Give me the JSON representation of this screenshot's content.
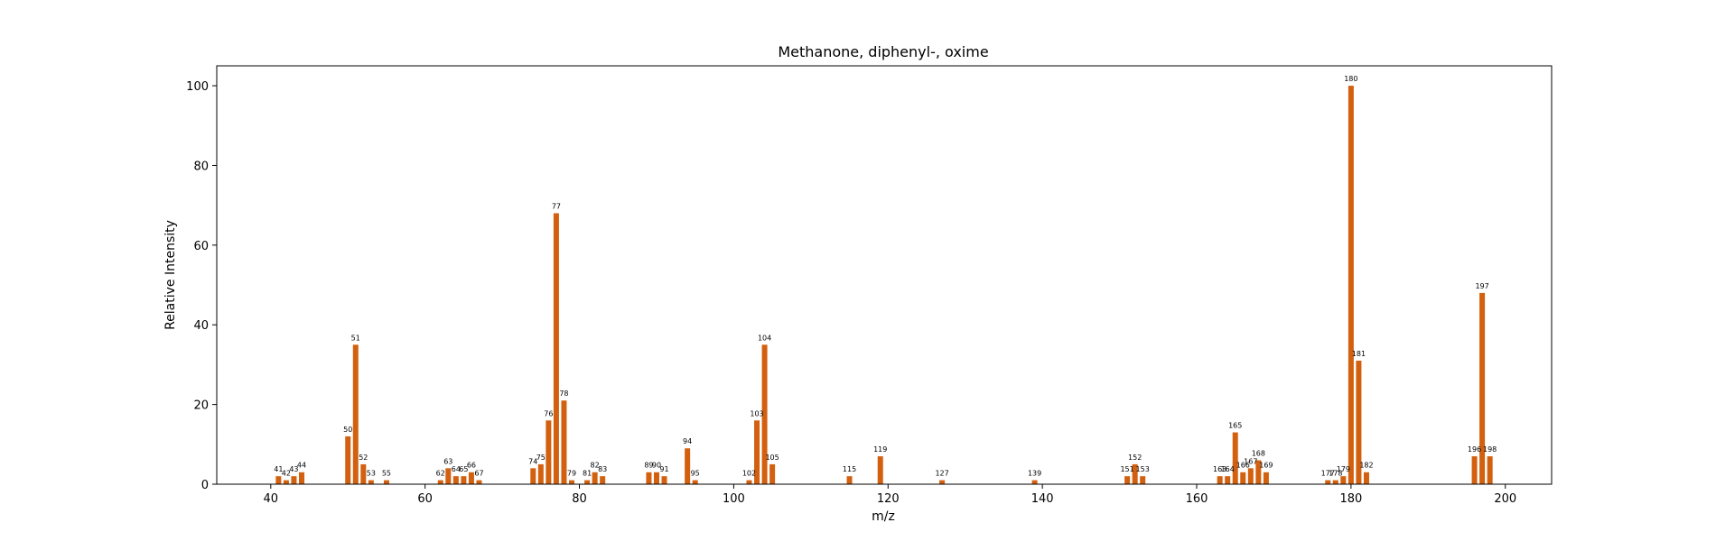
{
  "chart_data": {
    "type": "bar",
    "title": "Methanone, diphenyl-, oxime",
    "xlabel": "m/z",
    "ylabel": "Relative Intensity",
    "xlim": [
      33,
      206
    ],
    "ylim": [
      0,
      105
    ],
    "xticks": [
      40,
      60,
      80,
      100,
      120,
      140,
      160,
      180,
      200
    ],
    "yticks": [
      0,
      20,
      40,
      60,
      80,
      100
    ],
    "bar_color": "#d2600f",
    "grid": false,
    "x": [
      41,
      42,
      43,
      44,
      50,
      51,
      52,
      53,
      55,
      62,
      63,
      64,
      65,
      66,
      67,
      74,
      75,
      76,
      77,
      78,
      79,
      81,
      82,
      83,
      89,
      90,
      91,
      94,
      95,
      102,
      103,
      104,
      105,
      115,
      119,
      127,
      139,
      151,
      152,
      153,
      163,
      164,
      165,
      166,
      167,
      168,
      169,
      177,
      178,
      179,
      180,
      181,
      182,
      196,
      197,
      198
    ],
    "values": [
      2,
      1,
      2,
      3,
      12,
      35,
      5,
      1,
      1,
      1,
      4,
      2,
      2,
      3,
      1,
      4,
      5,
      16,
      68,
      21,
      1,
      1,
      3,
      2,
      3,
      3,
      2,
      9,
      1,
      1,
      16,
      35,
      5,
      2,
      7,
      1,
      1,
      2,
      5,
      2,
      2,
      2,
      13,
      3,
      4,
      6,
      3,
      1,
      1,
      2,
      100,
      31,
      3,
      7,
      48,
      7
    ],
    "labels": [
      "41",
      "42",
      "43",
      "44",
      "50",
      "51",
      "52",
      "53",
      "55",
      "62",
      "63",
      "64",
      "65",
      "66",
      "67",
      "74",
      "75",
      "76",
      "77",
      "78",
      "79",
      "81",
      "82",
      "83",
      "89",
      "90",
      "91",
      "94",
      "95",
      "102",
      "103",
      "104",
      "105",
      "115",
      "119",
      "127",
      "139",
      "151",
      "152",
      "153",
      "163",
      "164",
      "165",
      "166",
      "167",
      "168",
      "169",
      "177",
      "178",
      "179",
      "180",
      "181",
      "182",
      "196",
      "197",
      "198"
    ]
  }
}
